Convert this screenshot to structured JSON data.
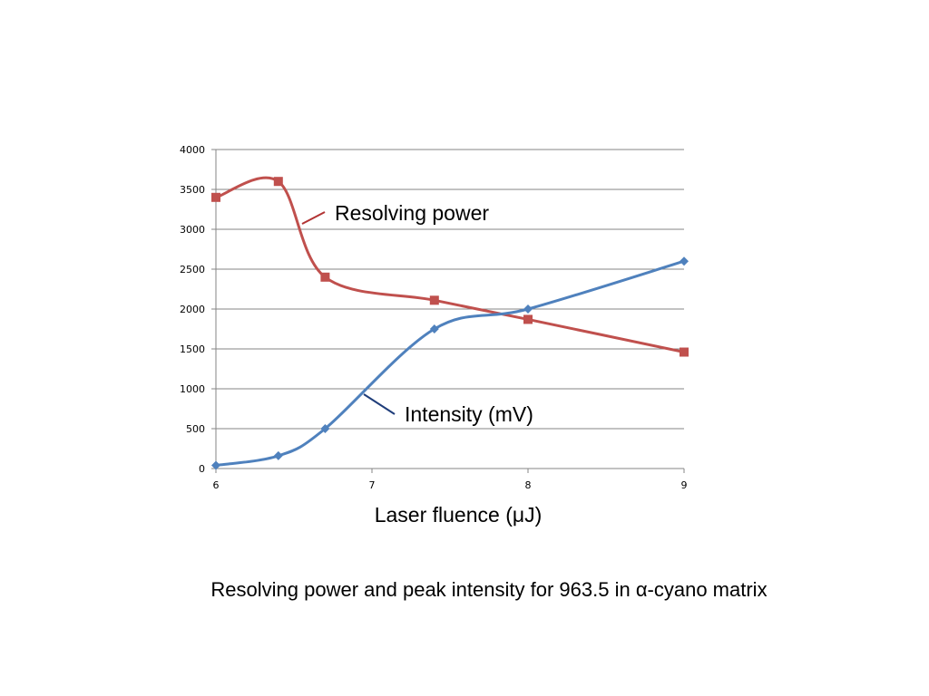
{
  "chart_data": {
    "type": "line",
    "smooth": true,
    "xlabel": "Laser fluence (μJ)",
    "ylabel": "",
    "xlim": [
      6,
      9
    ],
    "ylim": [
      0,
      4000
    ],
    "x_ticks": [
      6,
      7,
      8,
      9
    ],
    "y_ticks": [
      0,
      500,
      1000,
      1500,
      2000,
      2500,
      3000,
      3500,
      4000
    ],
    "grid": "horizontal",
    "legend": "none",
    "series": [
      {
        "name": "Resolving power",
        "color": "#c0504d",
        "marker": "square",
        "points": [
          {
            "x": 6.0,
            "y": 3400
          },
          {
            "x": 6.4,
            "y": 3600
          },
          {
            "x": 6.7,
            "y": 2400
          },
          {
            "x": 7.4,
            "y": 2110
          },
          {
            "x": 8.0,
            "y": 1870
          },
          {
            "x": 9.0,
            "y": 1460
          }
        ]
      },
      {
        "name": "Intensity (mV)",
        "color": "#4f81bd",
        "marker": "diamond",
        "points": [
          {
            "x": 6.0,
            "y": 40
          },
          {
            "x": 6.4,
            "y": 160
          },
          {
            "x": 6.7,
            "y": 500
          },
          {
            "x": 7.4,
            "y": 1750
          },
          {
            "x": 8.0,
            "y": 2000
          },
          {
            "x": 9.0,
            "y": 2600
          }
        ]
      }
    ]
  },
  "annotations": {
    "resolving_power": "Resolving power",
    "intensity": "Intensity (mV)"
  },
  "caption": {
    "prefix": "Resolving power and peak intensity for 963.5 in ",
    "symbol": "α",
    "suffix": "-cyano matrix"
  }
}
